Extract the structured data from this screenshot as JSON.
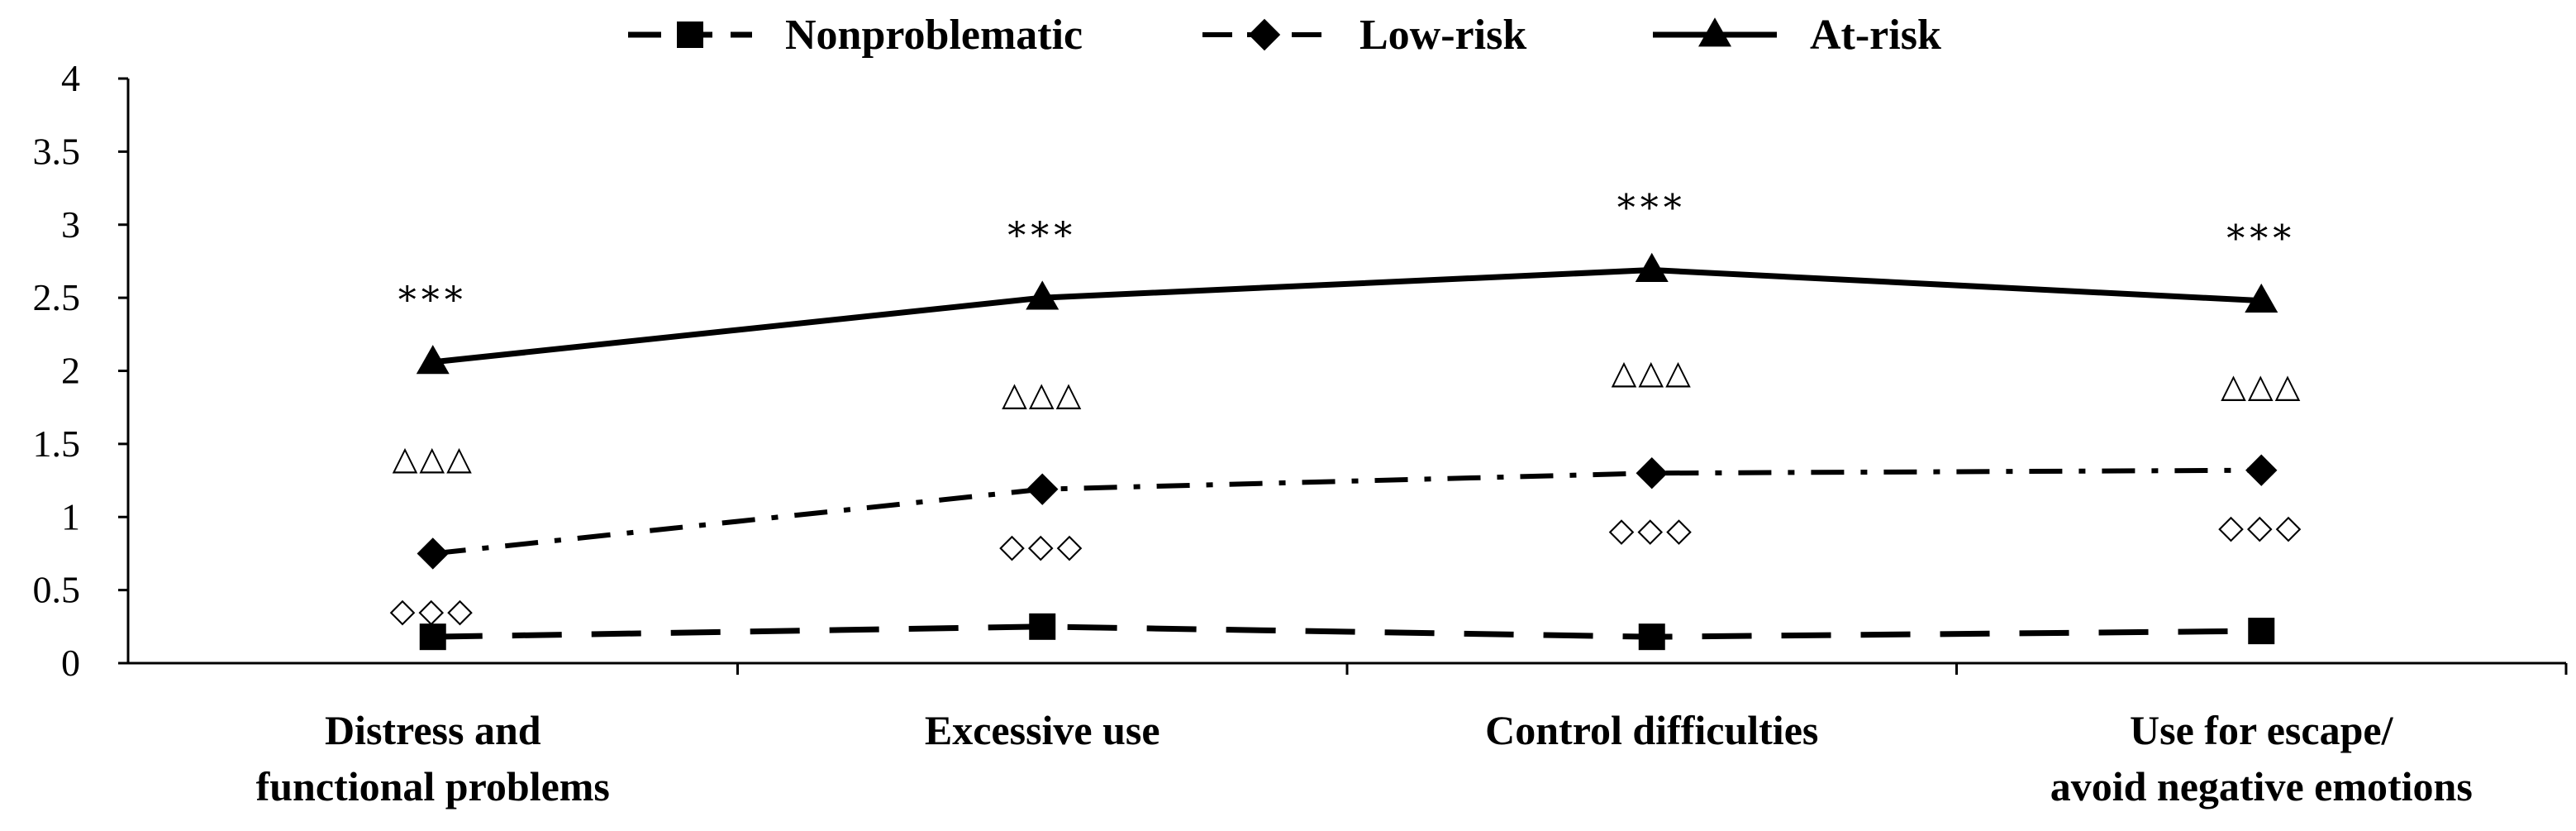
{
  "chart_data": {
    "type": "line",
    "title": "",
    "xlabel": "",
    "ylabel": "",
    "ylim": [
      0,
      4
    ],
    "yticks": [
      "0",
      "0.5",
      "1",
      "1.5",
      "2",
      "2.5",
      "3",
      "3.5",
      "4"
    ],
    "categories": [
      [
        "Distress and",
        "functional problems"
      ],
      [
        "Excessive use"
      ],
      [
        "Control difficulties"
      ],
      [
        "Use for escape/",
        "avoid negative emotions"
      ]
    ],
    "legend_position": "top",
    "series": [
      {
        "name": "Nonproblematic",
        "marker": "square",
        "line_style": "dashed",
        "values": [
          0.18,
          0.25,
          0.18,
          0.22
        ]
      },
      {
        "name": "Low-risk",
        "marker": "diamond",
        "line_style": "dash-dot",
        "values": [
          0.75,
          1.19,
          1.3,
          1.32
        ]
      },
      {
        "name": "At-risk",
        "marker": "triangle",
        "line_style": "solid",
        "values": [
          2.06,
          2.5,
          2.69,
          2.48
        ]
      }
    ],
    "annotations": {
      "at_risk_significance": "***",
      "low_vs_at_risk": "△△△",
      "non_vs_low_risk": "◇◇◇"
    }
  }
}
